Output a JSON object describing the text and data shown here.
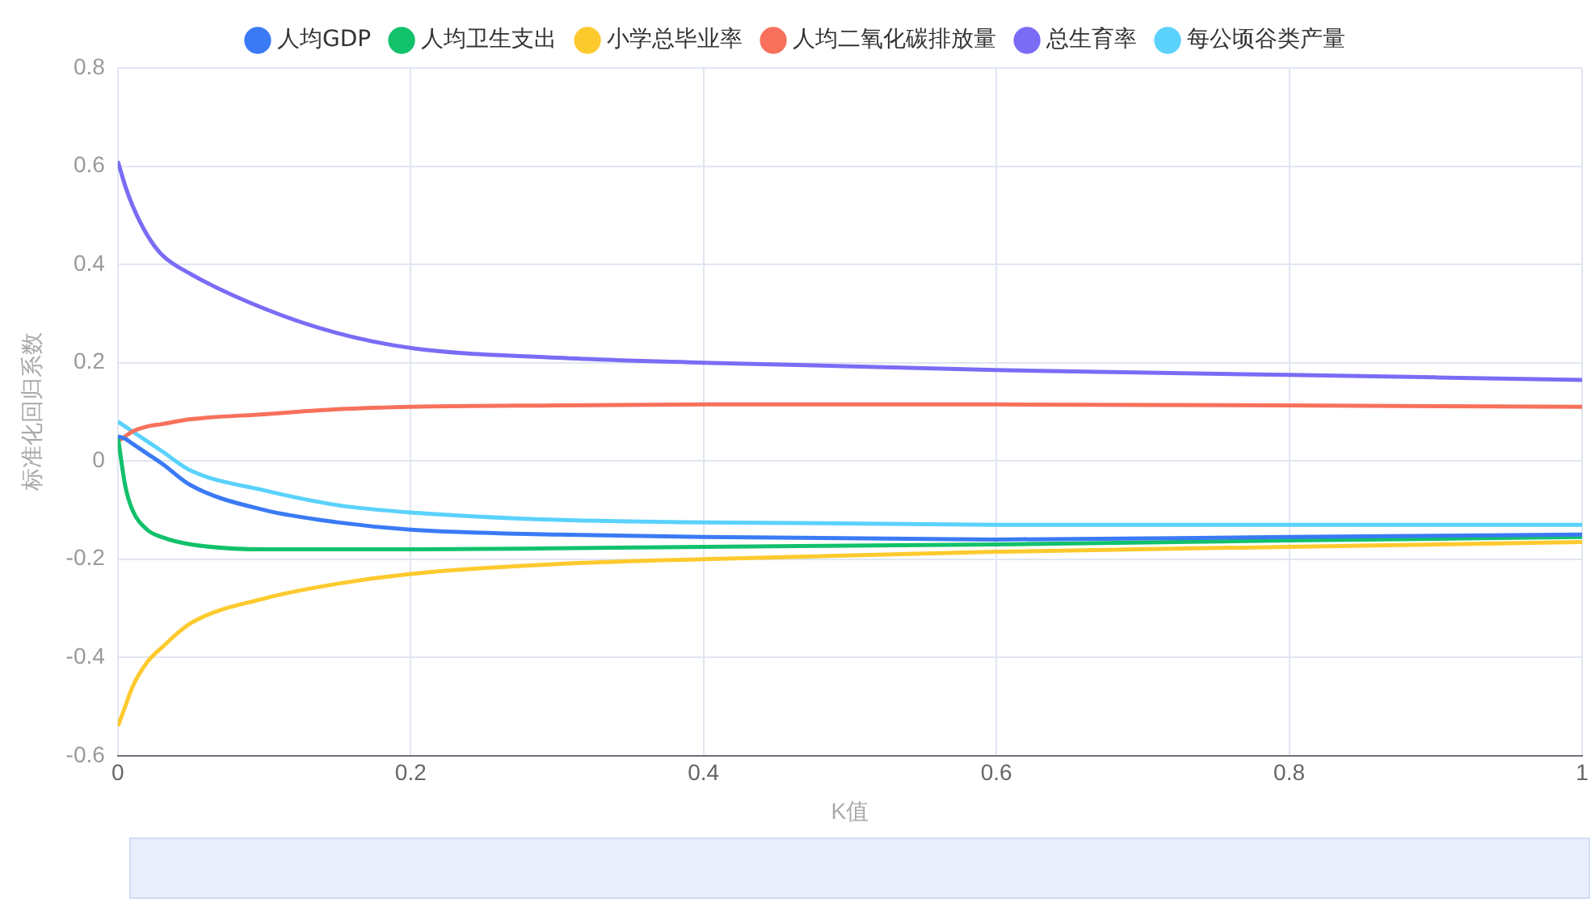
{
  "chart_data": {
    "type": "line",
    "xlabel": "K值",
    "ylabel": "标准化回归系数",
    "x": [
      0,
      0.005,
      0.01,
      0.02,
      0.03,
      0.05,
      0.1,
      0.15,
      0.2,
      0.3,
      0.4,
      0.6,
      0.8,
      1
    ],
    "series": [
      {
        "name": "人均GDP",
        "color": "#3a7af5",
        "values": [
          0.05,
          0.045,
          0.035,
          0.015,
          -0.005,
          -0.05,
          -0.1,
          -0.125,
          -0.14,
          -0.15,
          -0.155,
          -0.16,
          -0.155,
          -0.15
        ]
      },
      {
        "name": "人均卫生支出",
        "color": "#12c16b",
        "values": [
          0.05,
          -0.05,
          -0.1,
          -0.14,
          -0.155,
          -0.17,
          -0.18,
          -0.18,
          -0.18,
          -0.178,
          -0.175,
          -0.17,
          -0.162,
          -0.155
        ]
      },
      {
        "name": "小学总毕业率",
        "color": "#fdca2e",
        "values": [
          -0.54,
          -0.5,
          -0.46,
          -0.41,
          -0.38,
          -0.33,
          -0.28,
          -0.25,
          -0.23,
          -0.21,
          -0.2,
          -0.185,
          -0.175,
          -0.165
        ]
      },
      {
        "name": "人均二氧化碳排放量",
        "color": "#f7715c",
        "values": [
          0.04,
          0.05,
          0.06,
          0.07,
          0.075,
          0.085,
          0.095,
          0.105,
          0.11,
          0.113,
          0.115,
          0.115,
          0.113,
          0.11
        ]
      },
      {
        "name": "总生育率",
        "color": "#7b6cf6",
        "values": [
          0.61,
          0.56,
          0.52,
          0.46,
          0.42,
          0.38,
          0.31,
          0.26,
          0.23,
          0.21,
          0.2,
          0.185,
          0.175,
          0.165
        ]
      },
      {
        "name": "每公顷谷类产量",
        "color": "#5ad2fc",
        "values": [
          0.08,
          0.07,
          0.06,
          0.04,
          0.02,
          -0.02,
          -0.06,
          -0.09,
          -0.105,
          -0.12,
          -0.125,
          -0.13,
          -0.13,
          -0.13
        ]
      }
    ],
    "xlim": [
      0,
      1
    ],
    "xticks": [
      0,
      0.2,
      0.4,
      0.6,
      0.8,
      1
    ],
    "ylim": [
      -0.6,
      0.8
    ],
    "yticks": [
      -0.6,
      -0.4,
      -0.2,
      0,
      0.2,
      0.4,
      0.6,
      0.8
    ],
    "grid": true,
    "legend": "top",
    "marker": "none",
    "line_style": "solid"
  }
}
